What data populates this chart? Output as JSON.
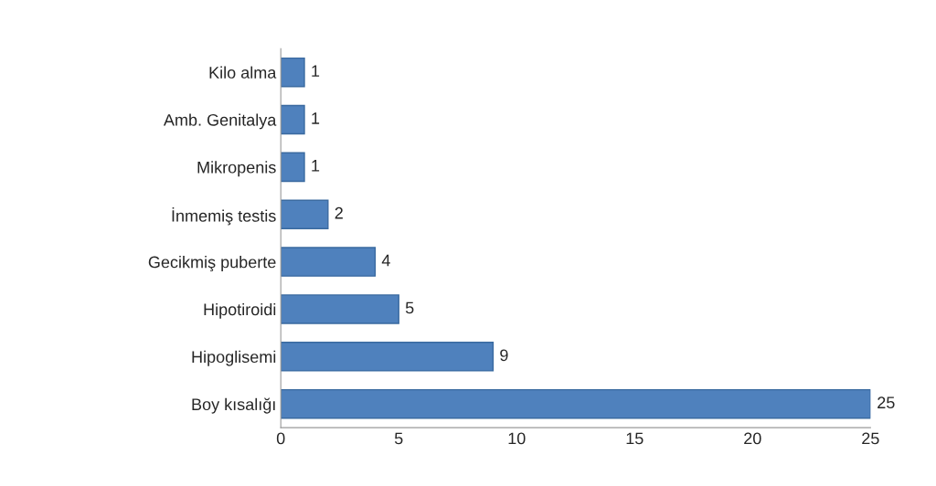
{
  "chart_data": {
    "type": "bar",
    "orientation": "horizontal",
    "categories": [
      "Kilo alma",
      "Amb. Genitalya",
      "Mikropenis",
      "İnmemiş testis",
      "Gecikmiş puberte",
      "Hipotiroidi",
      "Hipoglisemi",
      "Boy kısalığı"
    ],
    "values": [
      1,
      1,
      1,
      2,
      4,
      5,
      9,
      25
    ],
    "color": "#4f81bd",
    "xlim": [
      0,
      25
    ],
    "xticks": [
      0,
      5,
      10,
      15,
      20,
      25
    ],
    "data_labels": true,
    "grid": false
  }
}
